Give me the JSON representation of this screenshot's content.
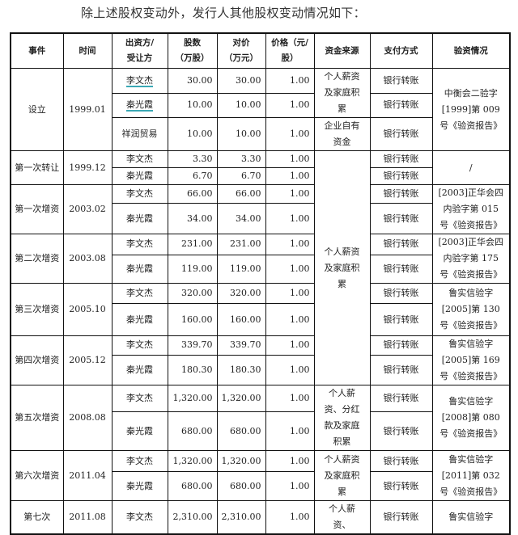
{
  "intro_text": "除上述股权变动外，发行人其他股权变动情况如下：",
  "table": {
    "headers": [
      "事件",
      "时间",
      "出资方/受让方",
      "股数（万股）",
      "对价（万元）",
      "价格（元/股）",
      "资金来源",
      "支付方式",
      "验资情况"
    ],
    "header_lines": [
      [
        "事件"
      ],
      [
        "时间"
      ],
      [
        "出资方/",
        "受让方"
      ],
      [
        "股数",
        "(万股)"
      ],
      [
        "对价",
        "(万元)"
      ],
      [
        "价格",
        "（元/股）"
      ],
      [
        "资金来源"
      ],
      [
        "支付方式"
      ],
      [
        "验资情况"
      ]
    ],
    "groups": [
      {
        "event": "设立",
        "date": "1999.01",
        "verification": "中衡会二验字[1999]第 009 号《验资报告》",
        "rows": [
          {
            "party": "李文杰",
            "shares": "30.00",
            "consideration": "30.00",
            "price": "1.00",
            "payment": "银行转账",
            "underlined": true
          },
          {
            "party": "秦光霞",
            "shares": "10.00",
            "consideration": "10.00",
            "price": "1.00",
            "payment": "银行转账",
            "underlined": true
          },
          {
            "party": "祥润贸易",
            "shares": "10.00",
            "consideration": "10.00",
            "price": "1.00",
            "payment": "银行转账"
          }
        ]
      },
      {
        "event": "第一次转让",
        "date": "1999.12",
        "verification": "/",
        "rows": [
          {
            "party": "李文杰",
            "shares": "3.30",
            "consideration": "3.30",
            "price": "1.00",
            "payment": "银行转账"
          },
          {
            "party": "秦光霞",
            "shares": "6.70",
            "consideration": "6.70",
            "price": "1.00",
            "payment": "银行转账"
          }
        ]
      },
      {
        "event": "第一次增资",
        "date": "2003.02",
        "verification": "[2003]正华会四内验字第 015 号《验资报告》",
        "rows": [
          {
            "party": "李文杰",
            "shares": "66.00",
            "consideration": "66.00",
            "price": "1.00",
            "payment": "银行转账"
          },
          {
            "party": "秦光霞",
            "shares": "34.00",
            "consideration": "34.00",
            "price": "1.00",
            "payment": "银行转账"
          }
        ]
      },
      {
        "event": "第二次增资",
        "date": "2003.08",
        "verification": "[2003]正华会四内验字第 175 号《验资报告》",
        "rows": [
          {
            "party": "李文杰",
            "shares": "231.00",
            "consideration": "231.00",
            "price": "1.00",
            "payment": "银行转账"
          },
          {
            "party": "秦光霞",
            "shares": "119.00",
            "consideration": "119.00",
            "price": "1.00",
            "payment": "银行转账"
          }
        ]
      },
      {
        "event": "第三次增资",
        "date": "2005.10",
        "verification": "鲁实信验字[2005]第 130 号《验资报告》",
        "rows": [
          {
            "party": "李文杰",
            "shares": "320.00",
            "consideration": "320.00",
            "price": "1.00",
            "payment": "银行转账"
          },
          {
            "party": "秦光霞",
            "shares": "160.00",
            "consideration": "160.00",
            "price": "1.00",
            "payment": "银行转账"
          }
        ]
      },
      {
        "event": "第四次增资",
        "date": "2005.12",
        "verification": "鲁实信验字[2005]第 169 号《验资报告》",
        "rows": [
          {
            "party": "李文杰",
            "shares": "339.70",
            "consideration": "339.70",
            "price": "1.00",
            "payment": "银行转账"
          },
          {
            "party": "秦光霞",
            "shares": "180.30",
            "consideration": "180.30",
            "price": "1.00",
            "payment": "银行转账"
          }
        ]
      },
      {
        "event": "第五次增资",
        "date": "2008.08",
        "verification": "鲁实信验字[2008]第 080 号《验资报告》",
        "rows": [
          {
            "party": "李文杰",
            "shares": "1,320.00",
            "consideration": "1,320.00",
            "price": "1.00",
            "payment": "银行转账"
          },
          {
            "party": "秦光霞",
            "shares": "680.00",
            "consideration": "680.00",
            "price": "1.00",
            "payment": "银行转账"
          }
        ]
      },
      {
        "event": "第六次增资",
        "date": "2011.04",
        "verification": "鲁实信验字[2011]第 032 号《验资报告》",
        "rows": [
          {
            "party": "李文杰",
            "shares": "1,320.00",
            "consideration": "1,320.00",
            "price": "1.00",
            "payment": "银行转账"
          },
          {
            "party": "秦光霞",
            "shares": "680.00",
            "consideration": "680.00",
            "price": "1.00",
            "payment": "银行转账"
          }
        ]
      },
      {
        "event": "第七次",
        "date": "2011.08",
        "verification": "鲁实信验字",
        "rows": [
          {
            "party": "李文杰",
            "shares": "2,310.00",
            "consideration": "2,310.00",
            "price": "1.00",
            "payment": "银行转账"
          }
        ]
      }
    ],
    "fund_sources": [
      {
        "text": "个人薪资及家庭积累",
        "start_row": 0,
        "span": 2
      },
      {
        "text": "企业自有资金",
        "start_row": 2,
        "span": 1
      },
      {
        "text": "个人薪资及家庭积累",
        "start_row": 3,
        "span": 10
      },
      {
        "text": "个人薪资、分红款及家庭积累",
        "start_row": 13,
        "span": 2
      },
      {
        "text": "个人薪资及家庭积累",
        "start_row": 15,
        "span": 2
      },
      {
        "text": "个人薪资、",
        "start_row": 17,
        "span": 1
      }
    ]
  }
}
